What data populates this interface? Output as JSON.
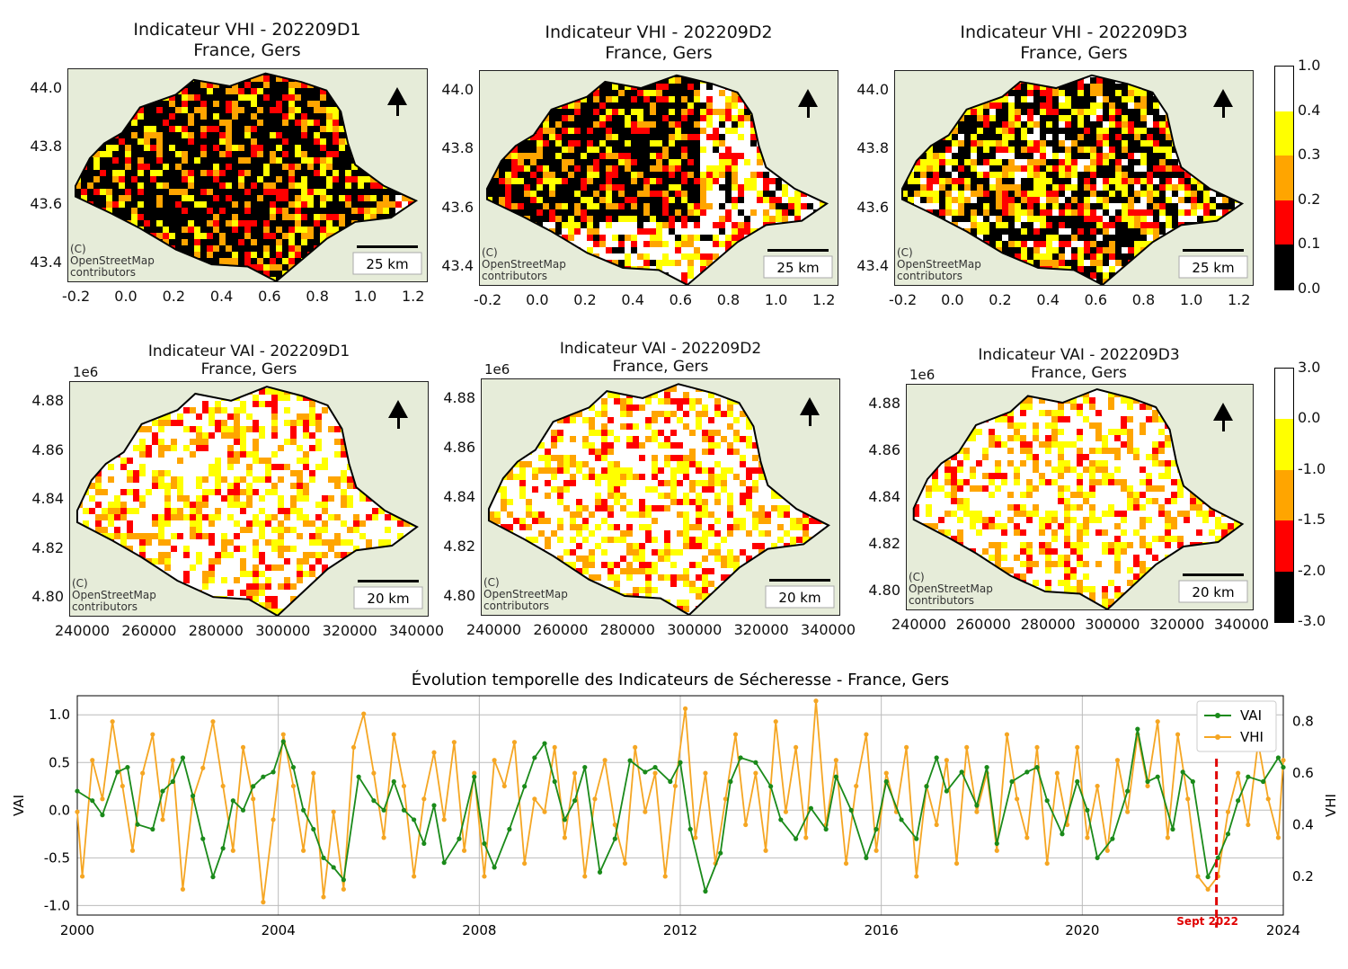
{
  "vhi_maps": [
    {
      "title": "Indicateur VHI - 202209D1",
      "subtitle": "France, Gers"
    },
    {
      "title": "Indicateur VHI - 202209D2",
      "subtitle": "France, Gers"
    },
    {
      "title": "Indicateur VHI - 202209D3",
      "subtitle": "France, Gers"
    }
  ],
  "vai_maps": [
    {
      "title": "Indicateur VAI - 202209D1",
      "subtitle": "France, Gers"
    },
    {
      "title": "Indicateur VAI - 202209D2",
      "subtitle": "France, Gers"
    },
    {
      "title": "Indicateur VAI - 202209D3",
      "subtitle": "France, Gers"
    }
  ],
  "vhi_axis": {
    "yticks": [
      "44.0",
      "43.8",
      "43.6",
      "43.4"
    ],
    "xticks": [
      "-0.2",
      "0.0",
      "0.2",
      "0.4",
      "0.6",
      "0.8",
      "1.0",
      "1.2"
    ],
    "scale_label": "25 km"
  },
  "vai_axis": {
    "multiplier": "1e6",
    "yticks": [
      "4.88",
      "4.86",
      "4.84",
      "4.82",
      "4.80"
    ],
    "xticks": [
      "240000",
      "260000",
      "280000",
      "300000",
      "320000",
      "340000"
    ],
    "scale_label": "20 km"
  },
  "osm_credit": [
    "(C)",
    "OpenStreetMap",
    "contributors"
  ],
  "vhi_colorbar": {
    "ticks": [
      "1.0",
      "0.4",
      "0.3",
      "0.2",
      "0.1",
      "0.0"
    ],
    "colors": [
      "#ffffff",
      "#ffff00",
      "#ffa500",
      "#ff0000",
      "#000000"
    ]
  },
  "vai_colorbar": {
    "ticks": [
      "3.0",
      "0.0",
      "-1.0",
      "-1.5",
      "-2.0",
      "-3.0"
    ],
    "colors": [
      "#ffffff",
      "#ffff00",
      "#ffa500",
      "#ff0000",
      "#000000"
    ]
  },
  "chart_data": {
    "type": "line",
    "title": "Évolution temporelle des Indicateurs de Sécheresse - France, Gers",
    "xlabel": "",
    "ylabel": "VAI",
    "ylabel_right": "VHI",
    "xlim": [
      2000,
      2024
    ],
    "ylim": [
      -1.1,
      1.2
    ],
    "ylim_right": [
      0.05,
      0.9
    ],
    "xticks": [
      "2000",
      "2004",
      "2008",
      "2012",
      "2016",
      "2020",
      "2024"
    ],
    "yticks": [
      "1.0",
      "0.5",
      "0.0",
      "-0.5",
      "-1.0"
    ],
    "yticks_right": [
      "0.8",
      "0.6",
      "0.4",
      "0.2"
    ],
    "grid": true,
    "legend_position": "top-right",
    "annotation": {
      "label": "Sept 2022",
      "x": 2022.67
    },
    "series": [
      {
        "name": "VAI",
        "color": "#1a8a1a",
        "axis": "left",
        "points": [
          [
            2000.0,
            0.2
          ],
          [
            2000.3,
            0.1
          ],
          [
            2000.5,
            -0.05
          ],
          [
            2000.8,
            0.4
          ],
          [
            2001.0,
            0.45
          ],
          [
            2001.2,
            -0.15
          ],
          [
            2001.5,
            -0.2
          ],
          [
            2001.7,
            0.2
          ],
          [
            2001.9,
            0.3
          ],
          [
            2002.1,
            0.55
          ],
          [
            2002.3,
            0.15
          ],
          [
            2002.5,
            -0.3
          ],
          [
            2002.7,
            -0.7
          ],
          [
            2002.9,
            -0.4
          ],
          [
            2003.1,
            0.1
          ],
          [
            2003.3,
            0.0
          ],
          [
            2003.5,
            0.25
          ],
          [
            2003.7,
            0.35
          ],
          [
            2003.9,
            0.4
          ],
          [
            2004.1,
            0.72
          ],
          [
            2004.3,
            0.45
          ],
          [
            2004.5,
            0.0
          ],
          [
            2004.7,
            -0.2
          ],
          [
            2004.9,
            -0.5
          ],
          [
            2005.1,
            -0.6
          ],
          [
            2005.3,
            -0.73
          ],
          [
            2005.6,
            0.35
          ],
          [
            2005.9,
            0.1
          ],
          [
            2006.1,
            0.0
          ],
          [
            2006.3,
            0.3
          ],
          [
            2006.5,
            0.0
          ],
          [
            2006.7,
            -0.1
          ],
          [
            2006.9,
            -0.35
          ],
          [
            2007.1,
            0.05
          ],
          [
            2007.3,
            -0.55
          ],
          [
            2007.6,
            -0.3
          ],
          [
            2007.9,
            0.35
          ],
          [
            2008.1,
            -0.35
          ],
          [
            2008.3,
            -0.6
          ],
          [
            2008.6,
            -0.2
          ],
          [
            2008.9,
            0.25
          ],
          [
            2009.1,
            0.55
          ],
          [
            2009.3,
            0.7
          ],
          [
            2009.5,
            0.3
          ],
          [
            2009.7,
            -0.1
          ],
          [
            2009.9,
            0.1
          ],
          [
            2010.1,
            0.45
          ],
          [
            2010.4,
            -0.65
          ],
          [
            2010.7,
            -0.3
          ],
          [
            2011.0,
            0.52
          ],
          [
            2011.3,
            0.4
          ],
          [
            2011.5,
            0.45
          ],
          [
            2011.8,
            0.3
          ],
          [
            2012.0,
            0.5
          ],
          [
            2012.2,
            -0.2
          ],
          [
            2012.5,
            -0.85
          ],
          [
            2012.8,
            -0.45
          ],
          [
            2013.0,
            0.3
          ],
          [
            2013.2,
            0.55
          ],
          [
            2013.5,
            0.5
          ],
          [
            2013.8,
            0.25
          ],
          [
            2014.0,
            -0.1
          ],
          [
            2014.3,
            -0.3
          ],
          [
            2014.6,
            0.02
          ],
          [
            2014.9,
            -0.2
          ],
          [
            2015.1,
            0.35
          ],
          [
            2015.4,
            0.0
          ],
          [
            2015.7,
            -0.5
          ],
          [
            2015.9,
            -0.2
          ],
          [
            2016.1,
            0.3
          ],
          [
            2016.4,
            -0.1
          ],
          [
            2016.7,
            -0.3
          ],
          [
            2016.9,
            0.25
          ],
          [
            2017.1,
            0.55
          ],
          [
            2017.3,
            0.2
          ],
          [
            2017.6,
            0.4
          ],
          [
            2017.9,
            0.05
          ],
          [
            2018.1,
            0.45
          ],
          [
            2018.3,
            -0.35
          ],
          [
            2018.6,
            0.3
          ],
          [
            2018.9,
            0.4
          ],
          [
            2019.1,
            0.45
          ],
          [
            2019.3,
            0.1
          ],
          [
            2019.6,
            -0.25
          ],
          [
            2019.9,
            0.3
          ],
          [
            2020.1,
            0.0
          ],
          [
            2020.3,
            -0.5
          ],
          [
            2020.6,
            -0.3
          ],
          [
            2020.9,
            0.2
          ],
          [
            2021.1,
            0.85
          ],
          [
            2021.3,
            0.3
          ],
          [
            2021.5,
            0.35
          ],
          [
            2021.8,
            -0.2
          ],
          [
            2022.0,
            0.4
          ],
          [
            2022.2,
            0.3
          ],
          [
            2022.5,
            -0.7
          ],
          [
            2022.7,
            -0.5
          ],
          [
            2022.9,
            -0.25
          ],
          [
            2023.1,
            0.1
          ],
          [
            2023.3,
            0.35
          ],
          [
            2023.6,
            0.3
          ],
          [
            2023.9,
            0.55
          ],
          [
            2024.0,
            0.45
          ]
        ]
      },
      {
        "name": "VHI",
        "color": "#f5a623",
        "axis": "right",
        "points": [
          [
            2000.0,
            0.45
          ],
          [
            2000.1,
            0.2
          ],
          [
            2000.3,
            0.65
          ],
          [
            2000.5,
            0.5
          ],
          [
            2000.7,
            0.8
          ],
          [
            2000.9,
            0.55
          ],
          [
            2001.1,
            0.3
          ],
          [
            2001.3,
            0.6
          ],
          [
            2001.5,
            0.75
          ],
          [
            2001.7,
            0.42
          ],
          [
            2001.9,
            0.65
          ],
          [
            2002.1,
            0.15
          ],
          [
            2002.3,
            0.5
          ],
          [
            2002.5,
            0.62
          ],
          [
            2002.7,
            0.8
          ],
          [
            2002.9,
            0.55
          ],
          [
            2003.1,
            0.3
          ],
          [
            2003.3,
            0.7
          ],
          [
            2003.5,
            0.5
          ],
          [
            2003.7,
            0.1
          ],
          [
            2003.9,
            0.42
          ],
          [
            2004.1,
            0.75
          ],
          [
            2004.3,
            0.55
          ],
          [
            2004.5,
            0.3
          ],
          [
            2004.7,
            0.6
          ],
          [
            2004.9,
            0.12
          ],
          [
            2005.1,
            0.45
          ],
          [
            2005.3,
            0.15
          ],
          [
            2005.5,
            0.7
          ],
          [
            2005.7,
            0.83
          ],
          [
            2005.9,
            0.6
          ],
          [
            2006.1,
            0.35
          ],
          [
            2006.3,
            0.75
          ],
          [
            2006.5,
            0.55
          ],
          [
            2006.7,
            0.2
          ],
          [
            2006.9,
            0.5
          ],
          [
            2007.1,
            0.68
          ],
          [
            2007.3,
            0.42
          ],
          [
            2007.5,
            0.72
          ],
          [
            2007.7,
            0.3
          ],
          [
            2007.9,
            0.6
          ],
          [
            2008.1,
            0.2
          ],
          [
            2008.3,
            0.65
          ],
          [
            2008.5,
            0.55
          ],
          [
            2008.7,
            0.72
          ],
          [
            2008.9,
            0.25
          ],
          [
            2009.1,
            0.5
          ],
          [
            2009.3,
            0.45
          ],
          [
            2009.5,
            0.7
          ],
          [
            2009.7,
            0.35
          ],
          [
            2009.9,
            0.6
          ],
          [
            2010.1,
            0.2
          ],
          [
            2010.3,
            0.5
          ],
          [
            2010.5,
            0.65
          ],
          [
            2010.7,
            0.4
          ],
          [
            2010.9,
            0.25
          ],
          [
            2011.1,
            0.7
          ],
          [
            2011.3,
            0.45
          ],
          [
            2011.5,
            0.6
          ],
          [
            2011.7,
            0.2
          ],
          [
            2011.9,
            0.55
          ],
          [
            2012.1,
            0.85
          ],
          [
            2012.3,
            0.35
          ],
          [
            2012.5,
            0.6
          ],
          [
            2012.7,
            0.25
          ],
          [
            2012.9,
            0.5
          ],
          [
            2013.1,
            0.75
          ],
          [
            2013.3,
            0.4
          ],
          [
            2013.5,
            0.6
          ],
          [
            2013.7,
            0.3
          ],
          [
            2013.9,
            0.8
          ],
          [
            2014.1,
            0.45
          ],
          [
            2014.3,
            0.7
          ],
          [
            2014.5,
            0.35
          ],
          [
            2014.7,
            0.88
          ],
          [
            2014.9,
            0.4
          ],
          [
            2015.1,
            0.65
          ],
          [
            2015.3,
            0.25
          ],
          [
            2015.5,
            0.55
          ],
          [
            2015.7,
            0.75
          ],
          [
            2015.9,
            0.3
          ],
          [
            2016.1,
            0.6
          ],
          [
            2016.3,
            0.45
          ],
          [
            2016.5,
            0.7
          ],
          [
            2016.7,
            0.2
          ],
          [
            2016.9,
            0.55
          ],
          [
            2017.1,
            0.4
          ],
          [
            2017.3,
            0.65
          ],
          [
            2017.5,
            0.25
          ],
          [
            2017.7,
            0.7
          ],
          [
            2017.9,
            0.45
          ],
          [
            2018.1,
            0.6
          ],
          [
            2018.3,
            0.3
          ],
          [
            2018.5,
            0.75
          ],
          [
            2018.7,
            0.5
          ],
          [
            2018.9,
            0.35
          ],
          [
            2019.1,
            0.7
          ],
          [
            2019.3,
            0.25
          ],
          [
            2019.5,
            0.6
          ],
          [
            2019.7,
            0.4
          ],
          [
            2019.9,
            0.7
          ],
          [
            2020.1,
            0.35
          ],
          [
            2020.3,
            0.55
          ],
          [
            2020.5,
            0.3
          ],
          [
            2020.7,
            0.65
          ],
          [
            2020.9,
            0.45
          ],
          [
            2021.1,
            0.75
          ],
          [
            2021.3,
            0.55
          ],
          [
            2021.5,
            0.8
          ],
          [
            2021.7,
            0.35
          ],
          [
            2021.9,
            0.75
          ],
          [
            2022.1,
            0.5
          ],
          [
            2022.3,
            0.2
          ],
          [
            2022.5,
            0.15
          ],
          [
            2022.7,
            0.2
          ],
          [
            2022.9,
            0.45
          ],
          [
            2023.1,
            0.6
          ],
          [
            2023.3,
            0.4
          ],
          [
            2023.5,
            0.72
          ],
          [
            2023.7,
            0.5
          ],
          [
            2023.9,
            0.35
          ],
          [
            2024.0,
            0.65
          ]
        ]
      }
    ]
  }
}
